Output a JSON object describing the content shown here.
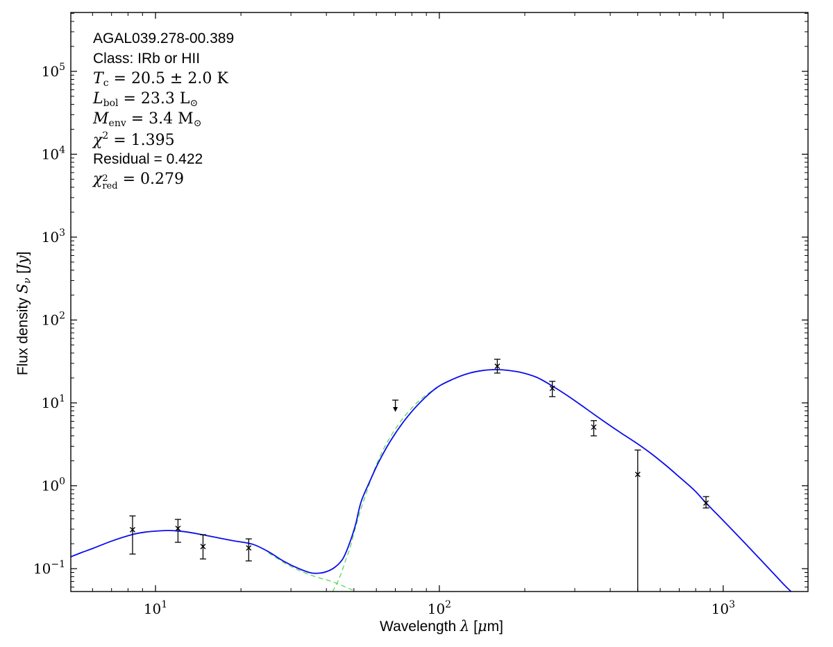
{
  "figure": {
    "background": "#ffffff",
    "fit_parameters": {
      "source": "AGAL039.278-00.389",
      "class": "IRb or HII",
      "T_c": "20.5 ± 2.0 K",
      "L_bol": "23.3 L⊙",
      "M_env": "3.4 M⊙",
      "chi2": "1.395",
      "residual": "0.422",
      "chi2_red": "0.279"
    },
    "annotation_lines": [
      {
        "segments": [
          {
            "t": "AGAL039.278-00.389",
            "s": "sans"
          }
        ]
      },
      {
        "segments": [
          {
            "t": "Class: IRb or HII",
            "s": "sans"
          }
        ]
      },
      {
        "segments": [
          {
            "t": "T",
            "s": "it"
          },
          {
            "t": "c",
            "s": "sub"
          },
          {
            "t": " = 20.5 ± 2.0 K",
            "s": "rm"
          }
        ]
      },
      {
        "segments": [
          {
            "t": "L",
            "s": "it"
          },
          {
            "t": "bol",
            "s": "sub"
          },
          {
            "t": " = 23.3 L",
            "s": "rm"
          },
          {
            "t": "⊙",
            "s": "sub"
          }
        ]
      },
      {
        "segments": [
          {
            "t": "M",
            "s": "it"
          },
          {
            "t": "env",
            "s": "sub"
          },
          {
            "t": " = 3.4 M",
            "s": "rm"
          },
          {
            "t": "⊙",
            "s": "sub"
          }
        ]
      },
      {
        "segments": [
          {
            "t": "χ",
            "s": "it"
          },
          {
            "t": "2",
            "s": "sup"
          },
          {
            "t": " = 1.395",
            "s": "rm"
          }
        ]
      },
      {
        "segments": [
          {
            "t": "Residual = 0.422",
            "s": "sans"
          }
        ]
      },
      {
        "segments": [
          {
            "t": "χ",
            "s": "it"
          },
          {
            "sup": "2",
            "sub": "red",
            "s": "supsub"
          },
          {
            "t": " = 0.279",
            "s": "rm"
          }
        ]
      }
    ]
  },
  "chart_data": {
    "type": "line",
    "subtype": "SED greybody fit with error-bar photometry",
    "title": "",
    "grid": false,
    "legend": "none",
    "x_axis": {
      "label_segments": [
        {
          "t": "Wavelength ",
          "s": "sans"
        },
        {
          "t": "λ",
          "s": "it"
        },
        {
          "t": " [",
          "s": "sans"
        },
        {
          "t": "μ",
          "s": "it"
        },
        {
          "t": "m]",
          "s": "sans"
        }
      ],
      "scale": "log",
      "min": 5.03,
      "max": 1990,
      "major_tick_exponents": [
        1,
        2,
        3
      ],
      "tick_base": 10
    },
    "y_axis": {
      "label_segments": [
        {
          "t": "Flux density ",
          "s": "sans"
        },
        {
          "t": "S",
          "s": "it"
        },
        {
          "t": "ν",
          "s": "sub-it"
        },
        {
          "t": " [",
          "s": "sans"
        },
        {
          "t": "Jy",
          "s": "it"
        },
        {
          "t": "]",
          "s": "sans"
        }
      ],
      "scale": "log",
      "min": 0.053,
      "max": 513000,
      "major_tick_exponents": [
        -1,
        0,
        1,
        2,
        3,
        4,
        5
      ],
      "tick_base": 10
    },
    "series": [
      {
        "name": "warm-component",
        "style": "dashed",
        "color": "#55d955",
        "width": 1.3,
        "points": [
          [
            25,
            0.155
          ],
          [
            28.5,
            0.117
          ],
          [
            32,
            0.0955
          ],
          [
            35.3,
            0.0835
          ],
          [
            38,
            0.077
          ],
          [
            41,
            0.0715
          ],
          [
            44,
            0.0655
          ],
          [
            47,
            0.0595
          ],
          [
            50,
            0.0545
          ],
          [
            53,
            0.05
          ],
          [
            55,
            0.0475
          ]
        ]
      },
      {
        "name": "cold-component",
        "style": "dashed",
        "color": "#55d955",
        "width": 1.3,
        "points": [
          [
            42,
            0.0525
          ],
          [
            44,
            0.0715
          ],
          [
            45.5,
            0.0955
          ],
          [
            47,
            0.133
          ],
          [
            48.5,
            0.18
          ],
          [
            50.5,
            0.3
          ],
          [
            52.5,
            0.48
          ],
          [
            55.5,
            0.85
          ],
          [
            59,
            1.55
          ],
          [
            64,
            2.9
          ],
          [
            71,
            5.2
          ],
          [
            79,
            8.3
          ],
          [
            89,
            12.2
          ],
          [
            98,
            15.0
          ]
        ]
      },
      {
        "name": "total-model-fit",
        "style": "solid",
        "color": "#0b0bee",
        "width": 1.8,
        "points": [
          [
            5.03,
            0.139
          ],
          [
            5.5,
            0.157
          ],
          [
            6,
            0.175
          ],
          [
            7,
            0.215
          ],
          [
            8.3,
            0.258
          ],
          [
            9.2,
            0.276
          ],
          [
            10,
            0.284
          ],
          [
            11,
            0.289
          ],
          [
            12,
            0.285
          ],
          [
            13,
            0.276
          ],
          [
            14.7,
            0.256
          ],
          [
            17,
            0.232
          ],
          [
            19,
            0.216
          ],
          [
            22,
            0.197
          ],
          [
            25,
            0.16
          ],
          [
            28.5,
            0.121
          ],
          [
            32,
            0.1
          ],
          [
            35.3,
            0.089
          ],
          [
            38,
            0.0885
          ],
          [
            40.5,
            0.0935
          ],
          [
            43,
            0.105
          ],
          [
            45.4,
            0.127
          ],
          [
            46.8,
            0.155
          ],
          [
            48.1,
            0.196
          ],
          [
            49.5,
            0.26
          ],
          [
            50.9,
            0.36
          ],
          [
            53,
            0.64
          ],
          [
            57,
            1.15
          ],
          [
            61,
            1.9
          ],
          [
            67,
            3.4
          ],
          [
            75,
            6.0
          ],
          [
            85,
            9.9
          ],
          [
            98,
            15.3
          ],
          [
            112,
            19.4
          ],
          [
            126,
            22.6
          ],
          [
            142,
            24.6
          ],
          [
            158,
            25.2
          ],
          [
            175,
            24.7
          ],
          [
            195,
            23.2
          ],
          [
            220,
            20.4
          ],
          [
            250,
            16.0
          ],
          [
            285,
            12.0
          ],
          [
            320,
            9.1
          ],
          [
            350,
            7.3
          ],
          [
            400,
            5.3
          ],
          [
            450,
            4.05
          ],
          [
            500,
            3.2
          ],
          [
            560,
            2.42
          ],
          [
            630,
            1.75
          ],
          [
            700,
            1.28
          ],
          [
            790,
            0.89
          ],
          [
            870,
            0.62
          ],
          [
            1000,
            0.381
          ],
          [
            1150,
            0.232
          ],
          [
            1320,
            0.141
          ],
          [
            1500,
            0.0885
          ],
          [
            1650,
            0.0625
          ],
          [
            1760,
            0.0505
          ]
        ]
      }
    ],
    "data_points": [
      {
        "wavelength_um": 8.3,
        "flux_jy": 0.295,
        "flux_hi_jy": 0.433,
        "flux_lo_jy": 0.15
      },
      {
        "wavelength_um": 12.0,
        "flux_jy": 0.306,
        "flux_hi_jy": 0.393,
        "flux_lo_jy": 0.208
      },
      {
        "wavelength_um": 14.7,
        "flux_jy": 0.185,
        "flux_hi_jy": 0.257,
        "flux_lo_jy": 0.131
      },
      {
        "wavelength_um": 21.3,
        "flux_jy": 0.178,
        "flux_hi_jy": 0.229,
        "flux_lo_jy": 0.124
      },
      {
        "wavelength_um": 70,
        "flux_jy": 10.8,
        "upper_limit": true
      },
      {
        "wavelength_um": 160,
        "flux_jy": 27.7,
        "flux_hi_jy": 33.6,
        "flux_lo_jy": 22.9
      },
      {
        "wavelength_um": 250,
        "flux_jy": 15.0,
        "flux_hi_jy": 18.2,
        "flux_lo_jy": 11.9
      },
      {
        "wavelength_um": 350,
        "flux_jy": 5.1,
        "flux_hi_jy": 6.1,
        "flux_lo_jy": 4.0
      },
      {
        "wavelength_um": 500,
        "flux_jy": 1.37,
        "flux_hi_jy": 2.7,
        "flux_lo_jy": 0.053,
        "lo_clipped": true
      },
      {
        "wavelength_um": 870,
        "flux_jy": 0.62,
        "flux_hi_jy": 0.74,
        "flux_lo_jy": 0.54
      }
    ],
    "marker": {
      "shape": "x",
      "color": "#000000",
      "size": 7
    },
    "colors": {
      "model": "#0b0bee",
      "components": "#55d955",
      "axes": "#000000",
      "background": "#ffffff"
    }
  }
}
